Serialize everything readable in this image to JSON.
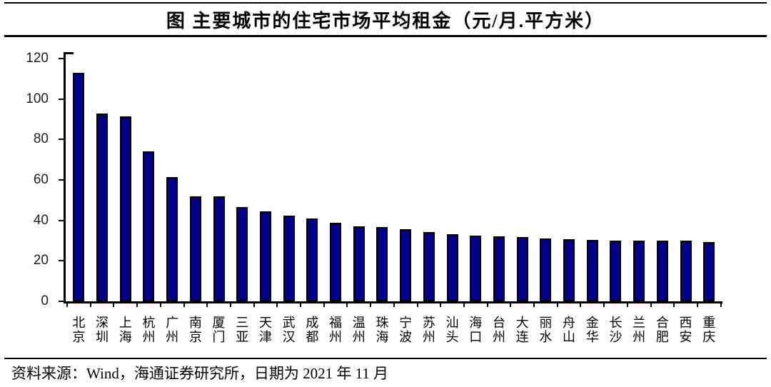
{
  "figure": {
    "title": "图  主要城市的住宅市场平均租金（元/月.平方米）",
    "source_note": "资料来源：Wind，海通证券研究所，日期为 2021 年 11 月"
  },
  "chart_data": {
    "type": "bar",
    "title": "主要城市的住宅市场平均租金",
    "unit": "元/月.平方米",
    "xlabel": "",
    "ylabel": "",
    "ylim": [
      0,
      120
    ],
    "yticks": [
      0,
      20,
      40,
      60,
      80,
      100,
      120
    ],
    "grid": false,
    "legend": false,
    "bar_color": "#00008B",
    "bar_border_color": "#000000",
    "categories": [
      "北京",
      "深圳",
      "上海",
      "杭州",
      "广州",
      "南京",
      "厦门",
      "三亚",
      "天津",
      "武汉",
      "成都",
      "福州",
      "温州",
      "珠海",
      "宁波",
      "苏州",
      "汕头",
      "海口",
      "台州",
      "大连",
      "丽水",
      "舟山",
      "金华",
      "长沙",
      "兰州",
      "合肥",
      "西安",
      "重庆"
    ],
    "values": [
      112.8,
      93,
      91.4,
      74,
      61.3,
      52,
      52,
      46.7,
      44.6,
      42.4,
      41,
      38.9,
      37,
      36.6,
      35.6,
      34.2,
      33.3,
      32.5,
      32,
      31.6,
      31.1,
      30.6,
      30.4,
      30,
      30,
      29.9,
      29.9,
      29.4
    ]
  }
}
